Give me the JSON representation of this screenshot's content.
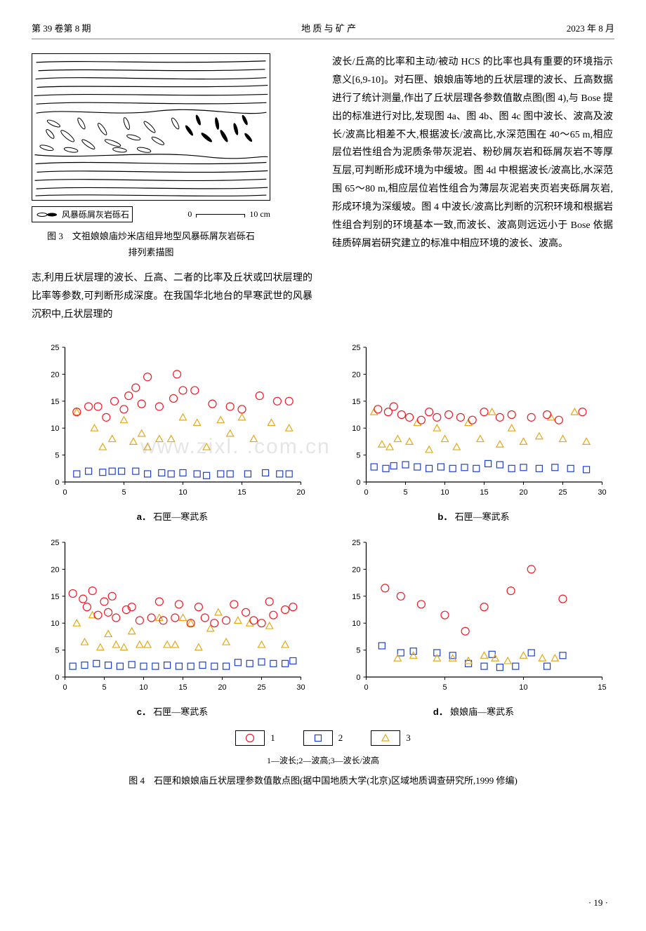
{
  "header": {
    "left": "第 39 卷第 8 期",
    "center": "地 质 与 矿 产",
    "right": "2023 年 8 月"
  },
  "watermark": "www.zixl.  .com.cn",
  "figure3": {
    "legend_label": "风暴砾屑灰岩砾石",
    "scale_zero": "0",
    "scale_len": "10 cm",
    "caption_l1": "图 3　文祖娘娘庙炒米店组异地型风暴砾屑灰岩砾石",
    "caption_l2": "排列素描图"
  },
  "body": {
    "left": "志,利用丘状层理的波长、丘高、二者的比率及丘状或凹状层理的比率等参数,可判断形成深度。在我国华北地台的早寒武世的风暴沉积中,丘状层理的",
    "right": "波长/丘高的比率和主动/被动 HCS 的比率也具有重要的环境指示意义[6,9-10]。对石匣、娘娘庙等地的丘状层理的波长、丘高数据进行了统计测量,作出了丘状层理各参数值散点图(图 4),与 Bose 提出的标准进行对比,发现图 4a、图 4b、图 4c 图中波长、波高及波长/波高比相差不大,根据波长/波高比,水深范围在 40～65 m,相应层位岩性组合为泥质条带灰泥岩、粉砂屑灰岩和砾屑灰岩不等厚互层,可判断形成环境为中缓坡。图 4d 中根据波长/波高比,水深范围 65～80 m,相应层位岩性组合为薄层灰泥岩夹页岩夹砾屑灰岩,形成环境为深缓坡。图 4 中波长/波高比判断的沉积环境和根据岩性组合判别的环境基本一致,而波长、波高则远远小于 Bose 依据硅质碎屑岩研究建立的标准中相应环境的波长、波高。"
  },
  "charts": {
    "background_color": "#ffffff",
    "axis_color": "#000000",
    "tick_fontsize": 11,
    "series_styles": {
      "circle": {
        "stroke": "#ee1c25",
        "fill": "none",
        "r": 5.5
      },
      "square": {
        "stroke": "#1f43c8",
        "fill": "none",
        "size": 9
      },
      "triangle": {
        "stroke": "#e6a817",
        "fill": "none",
        "size": 10
      }
    },
    "panels": [
      {
        "id": "a",
        "sublabel_prefix": "a．",
        "sublabel": "石匣—寒武系",
        "xlim": [
          0,
          20
        ],
        "xtick_step": 5,
        "ylim": [
          0,
          25
        ],
        "ytick_step": 5,
        "series": {
          "circle": [
            [
              1,
              13
            ],
            [
              2,
              14
            ],
            [
              2.8,
              14
            ],
            [
              3.5,
              12
            ],
            [
              4.2,
              15
            ],
            [
              5,
              13.5
            ],
            [
              5.4,
              16
            ],
            [
              6,
              17.5
            ],
            [
              6.5,
              14.5
            ],
            [
              7,
              19.5
            ],
            [
              8,
              14
            ],
            [
              9.2,
              15.5
            ],
            [
              9.5,
              20
            ],
            [
              10,
              17
            ],
            [
              11,
              17
            ],
            [
              12.5,
              14.5
            ],
            [
              14,
              14
            ],
            [
              15,
              13.5
            ],
            [
              16.5,
              16
            ],
            [
              18,
              15
            ],
            [
              19,
              15
            ]
          ],
          "triangle": [
            [
              1,
              13
            ],
            [
              2.5,
              10
            ],
            [
              3.2,
              6.5
            ],
            [
              4,
              8
            ],
            [
              5,
              11.5
            ],
            [
              5.8,
              7.5
            ],
            [
              6.5,
              9
            ],
            [
              7,
              6.5
            ],
            [
              8,
              8
            ],
            [
              9,
              8
            ],
            [
              10,
              12
            ],
            [
              11.2,
              11
            ],
            [
              12,
              6.5
            ],
            [
              13.2,
              11.5
            ],
            [
              14,
              9
            ],
            [
              15,
              12
            ],
            [
              16,
              8
            ],
            [
              17.5,
              11
            ],
            [
              19,
              10
            ]
          ],
          "square": [
            [
              1,
              1.5
            ],
            [
              2,
              2
            ],
            [
              3.2,
              1.8
            ],
            [
              4,
              2
            ],
            [
              4.8,
              2
            ],
            [
              6,
              2
            ],
            [
              7,
              1.5
            ],
            [
              8.2,
              1.7
            ],
            [
              9,
              1.5
            ],
            [
              10,
              1.7
            ],
            [
              11.2,
              1.5
            ],
            [
              12,
              1.2
            ],
            [
              13.2,
              1.5
            ],
            [
              14,
              1.5
            ],
            [
              15.5,
              1.5
            ],
            [
              17,
              1.7
            ],
            [
              18.2,
              1.5
            ],
            [
              19,
              1.5
            ]
          ]
        }
      },
      {
        "id": "b",
        "sublabel_prefix": "b．",
        "sublabel": "石匣—寒武系",
        "xlim": [
          0,
          30
        ],
        "xtick_step": 5,
        "ylim": [
          0,
          25
        ],
        "ytick_step": 5,
        "series": {
          "circle": [
            [
              1.5,
              13.5
            ],
            [
              2.8,
              13
            ],
            [
              3.5,
              14
            ],
            [
              4.5,
              12.5
            ],
            [
              5.5,
              12
            ],
            [
              7,
              11.5
            ],
            [
              8,
              13
            ],
            [
              9,
              12
            ],
            [
              10.5,
              12.5
            ],
            [
              12,
              12
            ],
            [
              13.5,
              11.5
            ],
            [
              15,
              13
            ],
            [
              17,
              12
            ],
            [
              18.5,
              12.5
            ],
            [
              21,
              12
            ],
            [
              23,
              12.5
            ],
            [
              24.5,
              11.5
            ],
            [
              27.5,
              13
            ]
          ],
          "triangle": [
            [
              1,
              13
            ],
            [
              2,
              7
            ],
            [
              3,
              6.5
            ],
            [
              4,
              8
            ],
            [
              5.5,
              7.5
            ],
            [
              6.5,
              11
            ],
            [
              8,
              6
            ],
            [
              9,
              10
            ],
            [
              10,
              8
            ],
            [
              11.5,
              6.5
            ],
            [
              13,
              11
            ],
            [
              14.5,
              8
            ],
            [
              16,
              13
            ],
            [
              17,
              7
            ],
            [
              18.5,
              10
            ],
            [
              20,
              7.5
            ],
            [
              22,
              8.5
            ],
            [
              23.5,
              12
            ],
            [
              25,
              8
            ],
            [
              26.5,
              13
            ],
            [
              28,
              7.5
            ]
          ],
          "square": [
            [
              1,
              2.8
            ],
            [
              2.5,
              2.5
            ],
            [
              3.5,
              3
            ],
            [
              5,
              3.2
            ],
            [
              6.5,
              2.8
            ],
            [
              8,
              2.5
            ],
            [
              9.5,
              2.8
            ],
            [
              11,
              2.5
            ],
            [
              12.5,
              2.7
            ],
            [
              14,
              2.5
            ],
            [
              15.5,
              3.4
            ],
            [
              17,
              3.2
            ],
            [
              18.5,
              2.5
            ],
            [
              20,
              2.7
            ],
            [
              22,
              2.5
            ],
            [
              24,
              2.7
            ],
            [
              26,
              2.5
            ],
            [
              28,
              2.3
            ]
          ]
        }
      },
      {
        "id": "c",
        "sublabel_prefix": "c．",
        "sublabel": "石匣—寒武系",
        "xlim": [
          0,
          30
        ],
        "xtick_step": 5,
        "ylim": [
          0,
          25
        ],
        "ytick_step": 5,
        "series": {
          "circle": [
            [
              1,
              15.5
            ],
            [
              2.3,
              14.5
            ],
            [
              2.8,
              13
            ],
            [
              3.5,
              16
            ],
            [
              4.2,
              11.5
            ],
            [
              5,
              14
            ],
            [
              5.5,
              12
            ],
            [
              6,
              15
            ],
            [
              6.5,
              11
            ],
            [
              7.8,
              12.5
            ],
            [
              8.5,
              13
            ],
            [
              9.5,
              10.5
            ],
            [
              11,
              11
            ],
            [
              12,
              14
            ],
            [
              12.5,
              10.5
            ],
            [
              14,
              11
            ],
            [
              14.5,
              13.5
            ],
            [
              16,
              10
            ],
            [
              17,
              13
            ],
            [
              17.8,
              11
            ],
            [
              19,
              10
            ],
            [
              20.5,
              10.5
            ],
            [
              21.5,
              13.5
            ],
            [
              23,
              12
            ],
            [
              24,
              10.5
            ],
            [
              25,
              10
            ],
            [
              26,
              14
            ],
            [
              26.5,
              11.5
            ],
            [
              28,
              12.5
            ],
            [
              29,
              13
            ]
          ],
          "triangle": [
            [
              1.5,
              10
            ],
            [
              2.5,
              6.5
            ],
            [
              3.5,
              11.5
            ],
            [
              4.5,
              5.5
            ],
            [
              5.5,
              8
            ],
            [
              6.5,
              6
            ],
            [
              7.5,
              5.5
            ],
            [
              8.5,
              8.5
            ],
            [
              9.5,
              6
            ],
            [
              10.5,
              6
            ],
            [
              12,
              11
            ],
            [
              13,
              6
            ],
            [
              14,
              6
            ],
            [
              15,
              11
            ],
            [
              16,
              10
            ],
            [
              17,
              5.5
            ],
            [
              18.5,
              9
            ],
            [
              19.5,
              12
            ],
            [
              20.5,
              6.5
            ],
            [
              22,
              10.5
            ],
            [
              23.5,
              10
            ],
            [
              25,
              6
            ],
            [
              26,
              9.5
            ],
            [
              28,
              6
            ]
          ],
          "square": [
            [
              1,
              2
            ],
            [
              2.5,
              2.2
            ],
            [
              4,
              2.5
            ],
            [
              5.5,
              2.2
            ],
            [
              7,
              2
            ],
            [
              8.5,
              2.3
            ],
            [
              10,
              2
            ],
            [
              11.5,
              2
            ],
            [
              13,
              2.2
            ],
            [
              14.5,
              2
            ],
            [
              16,
              2
            ],
            [
              17.5,
              2.2
            ],
            [
              19,
              2
            ],
            [
              20.5,
              2
            ],
            [
              22,
              2.7
            ],
            [
              23.5,
              2.5
            ],
            [
              25,
              2.8
            ],
            [
              26.5,
              2.5
            ],
            [
              28,
              2.5
            ],
            [
              29,
              3
            ]
          ]
        }
      },
      {
        "id": "d",
        "sublabel_prefix": "d．",
        "sublabel": "娘娘庙—寒武系",
        "xlim": [
          0,
          15
        ],
        "xtick_step": 5,
        "ylim": [
          0,
          25
        ],
        "ytick_step": 5,
        "series": {
          "circle": [
            [
              1.2,
              16.5
            ],
            [
              2.2,
              15
            ],
            [
              3.5,
              13.5
            ],
            [
              5,
              11.5
            ],
            [
              6.3,
              8.5
            ],
            [
              7.5,
              13
            ],
            [
              9.2,
              16
            ],
            [
              10.5,
              20
            ],
            [
              12.5,
              14.5
            ]
          ],
          "triangle": [
            [
              2,
              3.5
            ],
            [
              3,
              4
            ],
            [
              4.5,
              3.5
            ],
            [
              5.5,
              3.5
            ],
            [
              6.5,
              3
            ],
            [
              7.5,
              4
            ],
            [
              8.2,
              3.5
            ],
            [
              9,
              3
            ],
            [
              10,
              4
            ],
            [
              11.2,
              3.5
            ],
            [
              12,
              3.5
            ]
          ],
          "square": [
            [
              1,
              5.8
            ],
            [
              2.2,
              4.5
            ],
            [
              3,
              4.8
            ],
            [
              4.5,
              4.5
            ],
            [
              5.5,
              4
            ],
            [
              6.5,
              2.5
            ],
            [
              7.5,
              2
            ],
            [
              8,
              4.2
            ],
            [
              8.5,
              1.8
            ],
            [
              9.5,
              2
            ],
            [
              10.5,
              4.5
            ],
            [
              11.5,
              2
            ],
            [
              12.5,
              4
            ]
          ]
        }
      }
    ],
    "legend": [
      {
        "symbol": "circle",
        "num": "1"
      },
      {
        "symbol": "square",
        "num": "2"
      },
      {
        "symbol": "triangle",
        "num": "3"
      }
    ]
  },
  "figure4": {
    "legend_expl": "1—波长;2—波高;3—波长/波高",
    "caption": "图 4　石匣和娘娘庙丘状层理参数值散点图(据中国地质大学(北京)区域地质调查研究所,1999 修编)"
  },
  "page_number": "· 19 ·"
}
